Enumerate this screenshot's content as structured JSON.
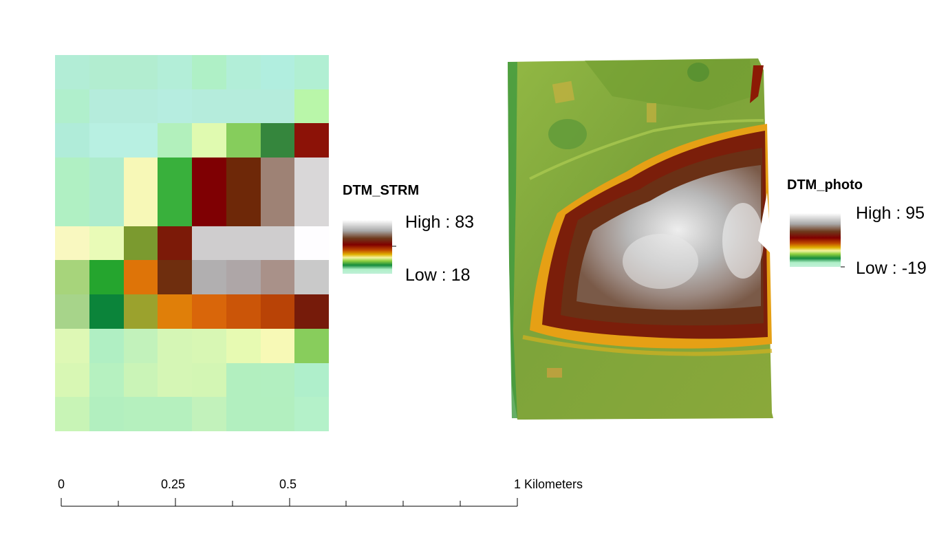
{
  "strm": {
    "legend_title": "DTM_STRM",
    "high_label": "High : 83",
    "low_label": "Low : 18",
    "grid_colors": [
      [
        "#b2edd6",
        "#b2edd0",
        "#b2edd0",
        "#b3eed8",
        "#aff0c6",
        "#b2eed8",
        "#b1eedf",
        "#b1efd3"
      ],
      [
        "#b0efcc",
        "#b5ecdc",
        "#b5ecdc",
        "#b6ede0",
        "#b5ecdc",
        "#b5ecdc",
        "#b5ecdc",
        "#b9f6a9"
      ],
      [
        "#b0ecd9",
        "#b8f0e2",
        "#b8f0e2",
        "#b2f0bc",
        "#e0fab0",
        "#86cd5c",
        "#35863d",
        "#8c1207"
      ],
      [
        "#b0f0c3",
        "#aeeccd",
        "#f7f8b7",
        "#39b03c",
        "#7f0003",
        "#6e2808",
        "#9e8275",
        "#d9d7d8"
      ],
      [
        "#b0f0c3",
        "#aeeccd",
        "#f7f8b7",
        "#39b03c",
        "#7f0003",
        "#6e2808",
        "#9e8275",
        "#d9d7d8"
      ],
      [
        "#f9f8c0",
        "#e9fbb7",
        "#7b9a2f",
        "#7c1a08",
        "#cfcdce",
        "#cfcdce",
        "#cfcdce",
        "#fefdff"
      ],
      [
        "#a7d47b",
        "#25a52e",
        "#de7408",
        "#6f2e0e",
        "#b1afb0",
        "#aea6a7",
        "#a99189",
        "#c9c9c9"
      ],
      [
        "#a7d48a",
        "#0b843a",
        "#9ba22d",
        "#e07f09",
        "#d9660a",
        "#cb5508",
        "#b94306",
        "#761b0a"
      ],
      [
        "#def8b5",
        "#b0efc3",
        "#c2f2bb",
        "#d5f6b5",
        "#d8f7b4",
        "#e7fab2",
        "#f7f9b6",
        "#88cd5c"
      ],
      [
        "#d8f7b4",
        "#b6f1c0",
        "#caf4b7",
        "#d5f6b5",
        "#d3f6b4",
        "#b2efbf",
        "#b2efc0",
        "#afefcb"
      ],
      [
        "#c8f4b6",
        "#b2efbf",
        "#b5f0be",
        "#b5f0be",
        "#c2f2bb",
        "#b2efbf",
        "#b2efbf",
        "#b4f1c9"
      ]
    ]
  },
  "photo": {
    "legend_title": "DTM_photo",
    "high_label": "High : 95",
    "low_label": "Low : -19"
  },
  "ramp_colors": [
    "#ffffff",
    "#a8a8a8",
    "#6e3a1c",
    "#800000",
    "#c04a00",
    "#e0a000",
    "#f0f080",
    "#90d040",
    "#209040",
    "#c0f0d8"
  ],
  "scalebar": {
    "labels": [
      "0",
      "0.25",
      "0.5",
      "1 Kilometers"
    ]
  }
}
